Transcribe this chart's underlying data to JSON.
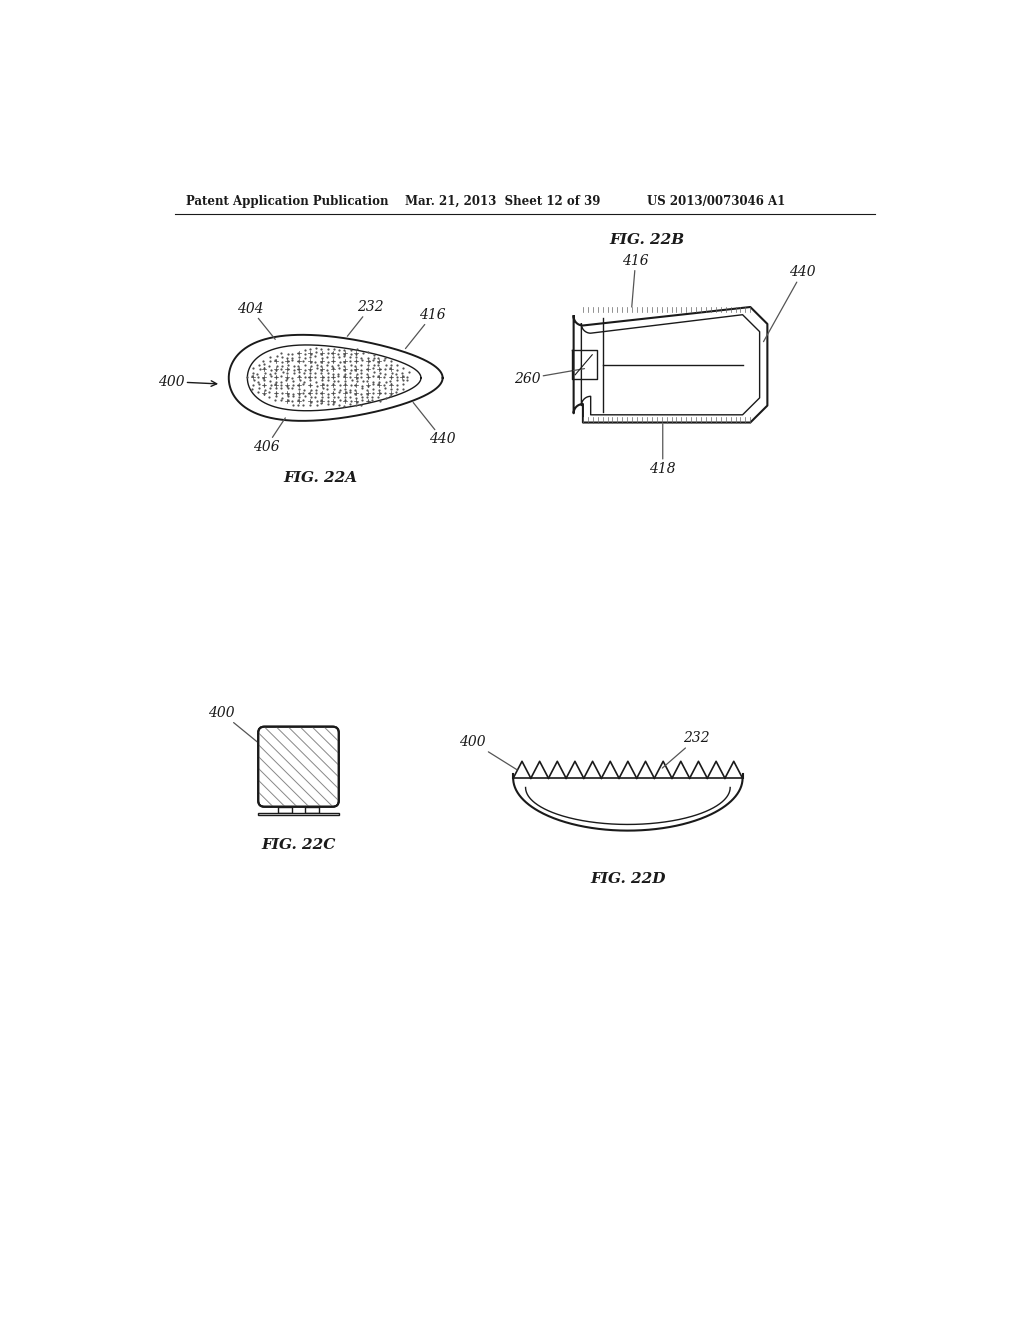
{
  "header_left": "Patent Application Publication",
  "header_mid": "Mar. 21, 2013  Sheet 12 of 39",
  "header_right": "US 2013/0073046 A1",
  "fig22a_label": "FIG. 22A",
  "fig22b_label": "FIG. 22B",
  "fig22c_label": "FIG. 22C",
  "fig22d_label": "FIG. 22D",
  "bg_color": "#ffffff",
  "line_color": "#1a1a1a",
  "text_color": "#1a1a1a"
}
